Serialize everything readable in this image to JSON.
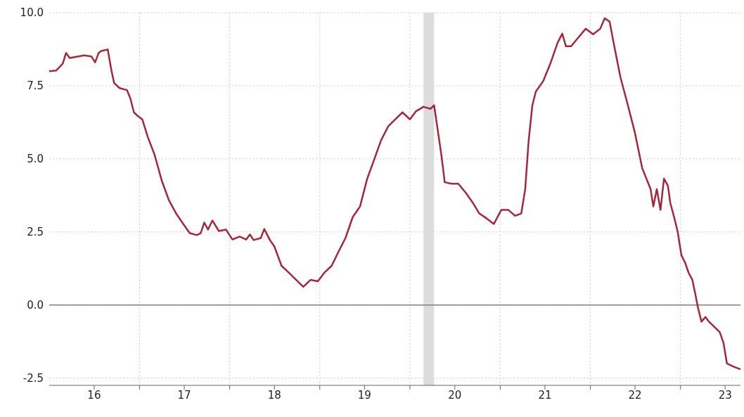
{
  "chart_data": {
    "type": "line",
    "xlim": [
      "2016-01-01",
      "2023-09-01"
    ],
    "ylim": [
      -2.75,
      10
    ],
    "xticks": [
      {
        "value": "2016-07-01",
        "label": "16"
      },
      {
        "value": "2017-01-01",
        "label": null
      },
      {
        "value": "2017-07-01",
        "label": "17"
      },
      {
        "value": "2018-01-01",
        "label": null
      },
      {
        "value": "2018-07-01",
        "label": "18"
      },
      {
        "value": "2019-01-01",
        "label": null
      },
      {
        "value": "2019-07-01",
        "label": "19"
      },
      {
        "value": "2020-01-01",
        "label": null
      },
      {
        "value": "2020-07-01",
        "label": "20"
      },
      {
        "value": "2021-01-01",
        "label": null
      },
      {
        "value": "2021-07-01",
        "label": "21"
      },
      {
        "value": "2022-01-01",
        "label": null
      },
      {
        "value": "2022-07-01",
        "label": "22"
      },
      {
        "value": "2023-01-01",
        "label": null
      },
      {
        "value": "2023-07-01",
        "label": "23"
      }
    ],
    "yticks": [
      {
        "value": -2.5,
        "label": "-2.5"
      },
      {
        "value": 0,
        "label": "0.0"
      },
      {
        "value": 2.5,
        "label": "2.5"
      },
      {
        "value": 5,
        "label": "5.0"
      },
      {
        "value": 7.5,
        "label": "7.5"
      },
      {
        "value": 10,
        "label": "10.0"
      }
    ],
    "grid": true,
    "ref_lines": [
      {
        "axis": "y",
        "value": 0,
        "color": "#808080"
      }
    ],
    "bands": [
      {
        "axis": "x",
        "from": "2020-02-25",
        "to": "2020-04-08",
        "color": "#dcdcdc"
      }
    ],
    "series": [
      {
        "color": "#a4283c",
        "x": [
          "2016-01-01",
          "2016-01-29",
          "2016-02-25",
          "2016-03-09",
          "2016-03-24",
          "2016-05-21",
          "2016-06-20",
          "2016-07-05",
          "2016-07-19",
          "2016-07-30",
          "2016-08-25",
          "2016-09-09",
          "2016-09-20",
          "2016-10-12",
          "2016-11-11",
          "2016-11-25",
          "2016-12-09",
          "2016-12-24",
          "2017-01-12",
          "2017-02-03",
          "2017-03-02",
          "2017-04-01",
          "2017-04-29",
          "2017-05-29",
          "2017-06-27",
          "2017-07-23",
          "2017-08-21",
          "2017-09-06",
          "2017-09-20",
          "2017-10-05",
          "2017-10-23",
          "2017-11-18",
          "2017-12-17",
          "2018-01-12",
          "2018-02-10",
          "2018-03-09",
          "2018-03-24",
          "2018-04-08",
          "2018-05-07",
          "2018-05-21",
          "2018-06-13",
          "2018-07-01",
          "2018-07-30",
          "2018-08-29",
          "2018-09-27",
          "2018-10-26",
          "2018-11-25",
          "2018-12-24",
          "2019-01-19",
          "2019-02-18",
          "2019-03-17",
          "2019-04-15",
          "2019-05-14",
          "2019-06-13",
          "2019-07-12",
          "2019-08-07",
          "2019-09-06",
          "2019-10-05",
          "2019-11-03",
          "2019-12-02",
          "2020-01-01",
          "2020-01-26",
          "2020-02-25",
          "2020-03-24",
          "2020-04-08",
          "2020-05-07",
          "2020-05-21",
          "2020-06-17",
          "2020-07-15",
          "2020-08-14",
          "2020-09-13",
          "2020-10-08",
          "2020-11-07",
          "2020-12-06",
          "2021-01-05",
          "2021-02-03",
          "2021-03-02",
          "2021-03-27",
          "2021-04-12",
          "2021-04-26",
          "2021-05-11",
          "2021-05-25",
          "2021-06-24",
          "2021-07-23",
          "2021-08-21",
          "2021-09-09",
          "2021-09-24",
          "2021-10-15",
          "2021-11-14",
          "2021-12-13",
          "2022-01-12",
          "2022-02-10",
          "2022-02-28",
          "2022-03-20",
          "2022-04-05",
          "2022-05-03",
          "2022-06-02",
          "2022-07-01",
          "2022-07-30",
          "2022-09-02",
          "2022-09-13",
          "2022-09-27",
          "2022-10-12",
          "2022-10-26",
          "2022-11-11",
          "2022-11-21",
          "2022-12-06",
          "2022-12-20",
          "2023-01-05",
          "2023-01-19",
          "2023-02-03",
          "2023-02-18",
          "2023-03-02",
          "2023-03-13",
          "2023-03-27",
          "2023-04-12",
          "2023-04-26",
          "2023-05-11",
          "2023-06-09",
          "2023-06-24",
          "2023-07-08",
          "2023-08-07",
          "2023-09-01"
        ],
        "values": [
          8.0,
          8.02,
          8.26,
          8.62,
          8.45,
          8.54,
          8.5,
          8.3,
          8.62,
          8.69,
          8.74,
          8.02,
          7.59,
          7.42,
          7.35,
          7.06,
          6.59,
          6.47,
          6.35,
          5.75,
          5.16,
          4.25,
          3.6,
          3.13,
          2.77,
          2.46,
          2.39,
          2.46,
          2.82,
          2.58,
          2.89,
          2.53,
          2.58,
          2.24,
          2.34,
          2.24,
          2.41,
          2.22,
          2.29,
          2.6,
          2.22,
          2.0,
          1.34,
          1.1,
          0.86,
          0.62,
          0.86,
          0.81,
          1.1,
          1.34,
          1.81,
          2.29,
          3.0,
          3.37,
          4.32,
          4.92,
          5.63,
          6.11,
          6.35,
          6.59,
          6.35,
          6.63,
          6.78,
          6.71,
          6.83,
          5.16,
          4.2,
          4.15,
          4.15,
          3.84,
          3.48,
          3.13,
          2.96,
          2.77,
          3.25,
          3.25,
          3.05,
          3.13,
          3.96,
          5.63,
          6.83,
          7.3,
          7.66,
          8.26,
          8.97,
          9.28,
          8.85,
          8.85,
          9.16,
          9.45,
          9.26,
          9.45,
          9.81,
          9.69,
          8.97,
          7.78,
          6.83,
          5.87,
          4.68,
          3.96,
          3.37,
          3.96,
          3.25,
          4.32,
          4.08,
          3.48,
          3.01,
          2.53,
          1.69,
          1.46,
          1.1,
          0.86,
          0.38,
          -0.1,
          -0.57,
          -0.41,
          -0.57,
          -0.69,
          -0.93,
          -1.29,
          -2.0,
          -2.12,
          -2.2
        ]
      }
    ]
  }
}
